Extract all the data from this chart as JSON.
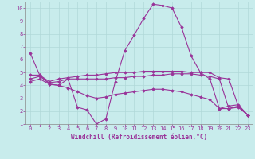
{
  "title": "",
  "xlabel": "Windchill (Refroidissement éolien,°C)",
  "ylabel": "",
  "background_color": "#c8ecec",
  "line_color": "#993399",
  "grid_color": "#aacccc",
  "xlim": [
    -0.5,
    23.5
  ],
  "ylim": [
    1,
    10
  ],
  "xticks": [
    0,
    1,
    2,
    3,
    4,
    5,
    6,
    7,
    8,
    9,
    10,
    11,
    12,
    13,
    14,
    15,
    16,
    17,
    18,
    19,
    20,
    21,
    22,
    23
  ],
  "yticks": [
    1,
    2,
    3,
    4,
    5,
    6,
    7,
    8,
    9,
    10
  ],
  "series": [
    {
      "x": [
        0,
        1,
        2,
        3,
        4,
        5,
        6,
        7,
        8,
        9,
        10,
        11,
        12,
        13,
        14,
        15,
        16,
        17,
        18,
        19,
        20,
        21,
        22,
        23
      ],
      "y": [
        6.5,
        4.8,
        4.1,
        4.0,
        4.5,
        2.3,
        2.1,
        1.0,
        1.4,
        4.3,
        6.7,
        7.9,
        9.2,
        10.3,
        10.2,
        10.0,
        8.5,
        6.3,
        5.0,
        4.5,
        2.2,
        2.4,
        2.5,
        1.7
      ]
    },
    {
      "x": [
        0,
        1,
        2,
        3,
        4,
        5,
        6,
        7,
        8,
        9,
        10,
        11,
        12,
        13,
        14,
        15,
        16,
        17,
        18,
        19,
        20,
        21,
        22,
        23
      ],
      "y": [
        4.8,
        4.8,
        4.3,
        4.5,
        4.6,
        4.7,
        4.8,
        4.8,
        4.9,
        5.0,
        5.0,
        5.0,
        5.1,
        5.1,
        5.1,
        5.1,
        5.1,
        5.0,
        5.0,
        5.0,
        4.6,
        4.5,
        2.4,
        1.7
      ]
    },
    {
      "x": [
        0,
        1,
        2,
        3,
        4,
        5,
        6,
        7,
        8,
        9,
        10,
        11,
        12,
        13,
        14,
        15,
        16,
        17,
        18,
        19,
        20,
        21,
        22,
        23
      ],
      "y": [
        4.5,
        4.7,
        4.2,
        4.3,
        4.5,
        4.5,
        4.5,
        4.5,
        4.5,
        4.6,
        4.6,
        4.7,
        4.7,
        4.8,
        4.8,
        4.9,
        4.9,
        4.9,
        4.8,
        4.7,
        4.5,
        2.2,
        2.4,
        1.7
      ]
    },
    {
      "x": [
        0,
        1,
        2,
        3,
        4,
        5,
        6,
        7,
        8,
        9,
        10,
        11,
        12,
        13,
        14,
        15,
        16,
        17,
        18,
        19,
        20,
        21,
        22,
        23
      ],
      "y": [
        4.3,
        4.5,
        4.1,
        4.0,
        3.8,
        3.5,
        3.2,
        3.0,
        3.1,
        3.3,
        3.4,
        3.5,
        3.6,
        3.7,
        3.7,
        3.6,
        3.5,
        3.3,
        3.1,
        2.9,
        2.2,
        2.2,
        2.3,
        1.7
      ]
    }
  ]
}
